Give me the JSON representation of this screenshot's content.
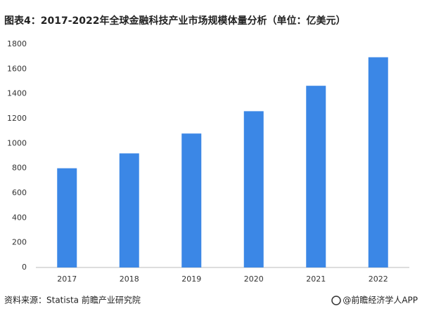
{
  "chart_data": {
    "type": "bar",
    "title": "图表4：2017-2022年全球金融科技产业市场规模体量分析（单位：亿美元）",
    "categories": [
      "2017",
      "2018",
      "2019",
      "2020",
      "2021",
      "2022"
    ],
    "values": [
      800,
      920,
      1080,
      1260,
      1465,
      1695
    ],
    "color": "#3b87e6",
    "ylim": [
      0,
      1800
    ],
    "yticks": [
      0,
      200,
      400,
      600,
      800,
      1000,
      1200,
      1400,
      1600,
      1800
    ],
    "grid": false,
    "source": "资料来源：Statista 前瞻产业研究院",
    "credit": "@前瞻经济学人APP"
  }
}
